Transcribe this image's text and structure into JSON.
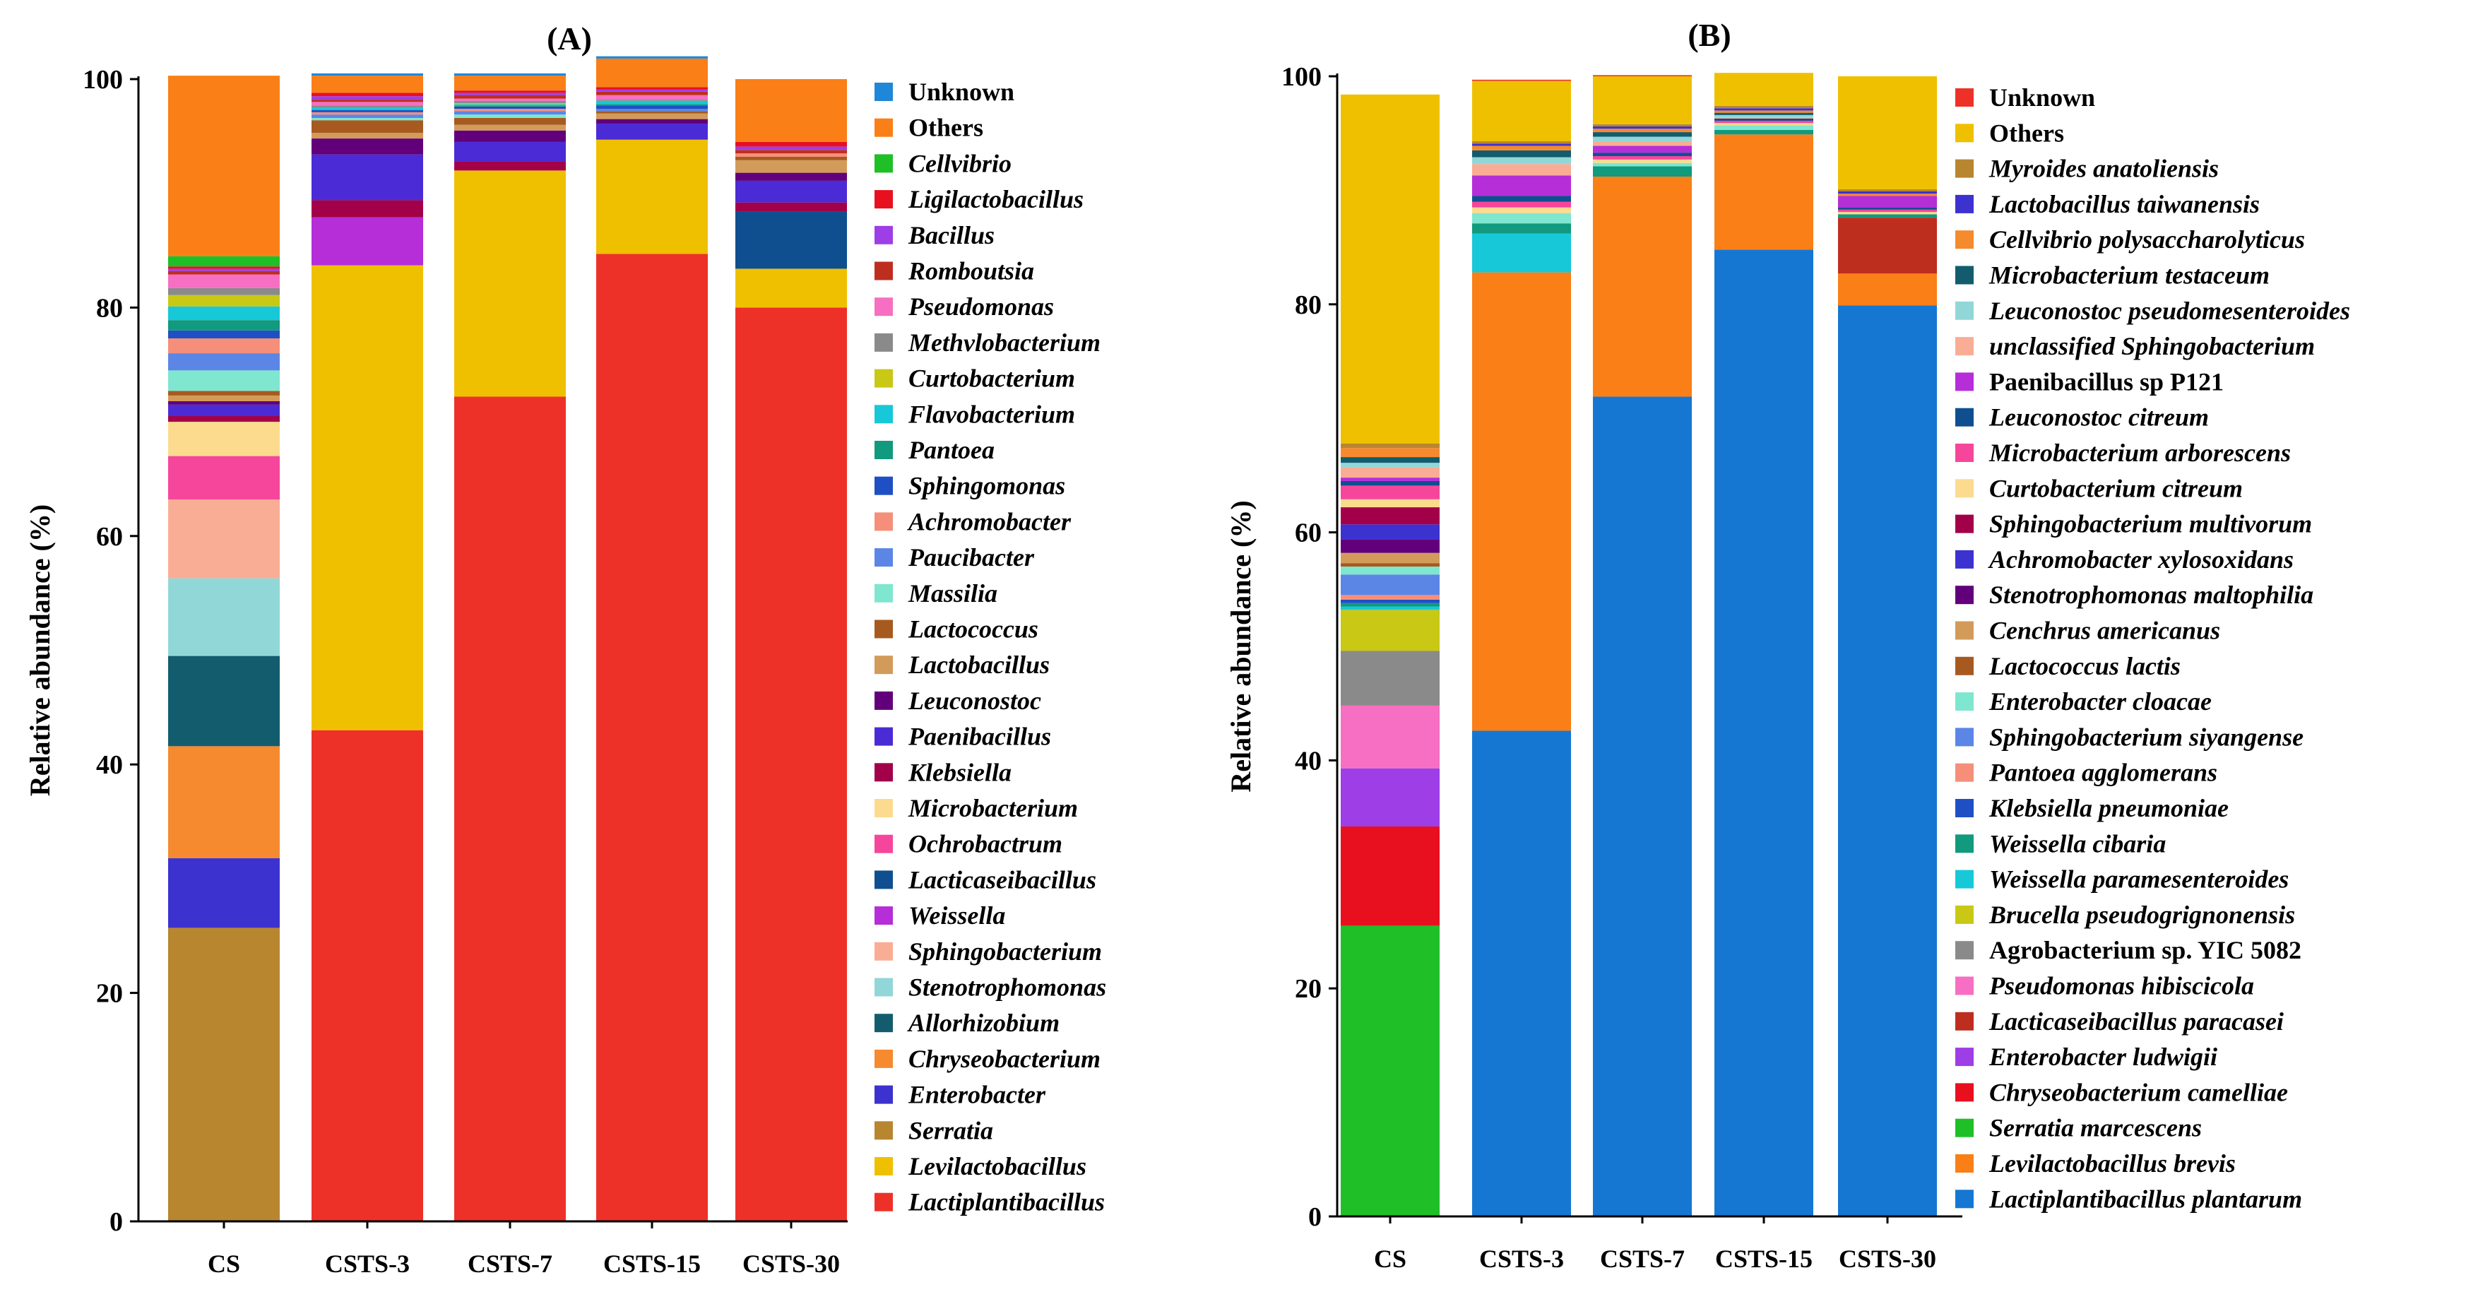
{
  "chart_data": [
    {
      "type": "bar",
      "stacked": true,
      "title": "(A)",
      "xlabel": "",
      "ylabel": "Relative abundance (%)",
      "ylim": [
        0,
        100
      ],
      "yticks": [
        0,
        20,
        40,
        60,
        80,
        100
      ],
      "categories": [
        "CS",
        "CSTS-3",
        "CSTS-7",
        "CSTS-15",
        "CSTS-30"
      ],
      "legend_position": "right",
      "series": [
        {
          "name": "Lactiplantibacillus",
          "italic": true,
          "color": "#ee3128",
          "values": [
            0,
            43.0,
            72.2,
            84.7,
            80.0
          ]
        },
        {
          "name": "Levilactobacillus",
          "italic": true,
          "color": "#efc000",
          "values": [
            0,
            40.7,
            19.8,
            10.0,
            3.4
          ]
        },
        {
          "name": "Serratia",
          "italic": true,
          "color": "#b8862f",
          "values": [
            25.7,
            0,
            0,
            0,
            0
          ]
        },
        {
          "name": "Enterobacter",
          "italic": true,
          "color": "#3c32d0",
          "values": [
            6.1,
            0,
            0,
            0,
            0
          ]
        },
        {
          "name": "Chryseobacterium",
          "italic": true,
          "color": "#f58a2e",
          "values": [
            9.8,
            0,
            0,
            0,
            0
          ]
        },
        {
          "name": "Allorhizobium",
          "italic": true,
          "color": "#135c6e",
          "values": [
            7.9,
            0,
            0,
            0,
            0
          ]
        },
        {
          "name": "Stenotrophomonas",
          "italic": true,
          "color": "#92d7d7",
          "values": [
            6.8,
            0,
            0,
            0,
            0
          ]
        },
        {
          "name": "Sphingobacterium",
          "italic": true,
          "color": "#f9ad95",
          "values": [
            6.9,
            0,
            0,
            0,
            0
          ]
        },
        {
          "name": "Weissella",
          "italic": true,
          "color": "#b52ed8",
          "values": [
            0,
            4.2,
            0,
            0,
            0
          ]
        },
        {
          "name": "Lacticaseibacillus",
          "italic": true,
          "color": "#0f4f8f",
          "values": [
            0,
            0,
            0,
            0,
            5.0
          ]
        },
        {
          "name": "Ochrobactrum",
          "italic": true,
          "color": "#f6469b",
          "values": [
            3.8,
            0,
            0,
            0,
            0
          ]
        },
        {
          "name": "Microbacterium",
          "italic": true,
          "color": "#fcdb8f",
          "values": [
            3.0,
            0,
            0,
            0,
            0
          ]
        },
        {
          "name": "Klebsiella",
          "italic": true,
          "color": "#a3004a",
          "values": [
            0.5,
            1.5,
            0.8,
            0,
            0.8
          ]
        },
        {
          "name": "Paenibacillus",
          "italic": true,
          "color": "#4b2bd5",
          "values": [
            1.0,
            4.0,
            1.7,
            1.4,
            1.9
          ]
        },
        {
          "name": "Leuconostoc",
          "italic": true,
          "color": "#62007b",
          "values": [
            0.3,
            1.4,
            1.0,
            0.4,
            0.7
          ]
        },
        {
          "name": "Lactobacillus",
          "italic": true,
          "color": "#d39b5a",
          "values": [
            0.5,
            0.5,
            0.5,
            0.5,
            1.1
          ]
        },
        {
          "name": "Lactococcus",
          "italic": true,
          "color": "#a75a1f",
          "values": [
            0.4,
            1.1,
            0.6,
            0.2,
            0.3
          ]
        },
        {
          "name": "Massilia",
          "italic": true,
          "color": "#7fe6d0",
          "values": [
            1.8,
            0.2,
            0.3,
            0,
            0
          ]
        },
        {
          "name": "Paucibacter",
          "italic": true,
          "color": "#5b86e6",
          "values": [
            1.5,
            0.3,
            0.3,
            0.2,
            0
          ]
        },
        {
          "name": "Achromobacter",
          "italic": true,
          "color": "#f58f7a",
          "values": [
            1.3,
            0.2,
            0.2,
            0,
            0.3
          ]
        },
        {
          "name": "Sphingomonas",
          "italic": true,
          "color": "#1f4fc5",
          "values": [
            0.7,
            0.2,
            0.2,
            0.3,
            0
          ]
        },
        {
          "name": "Pantoea",
          "italic": true,
          "color": "#119a7d",
          "values": [
            0.9,
            0,
            0.1,
            0.1,
            0
          ]
        },
        {
          "name": "Flavobacterium",
          "italic": true,
          "color": "#17c8d8",
          "values": [
            1.2,
            0.2,
            0.1,
            0.3,
            0
          ]
        },
        {
          "name": "Curtobacterium",
          "italic": true,
          "color": "#c8c815",
          "values": [
            1.0,
            0,
            0.1,
            0,
            0
          ]
        },
        {
          "name": "Methvlobacterium",
          "italic": true,
          "color": "#8a8a8a",
          "values": [
            0.6,
            0.2,
            0.2,
            0.1,
            0
          ]
        },
        {
          "name": "Pseudomonas",
          "italic": true,
          "color": "#f66fc2",
          "values": [
            1.2,
            0.3,
            0.2,
            0.4,
            0
          ]
        },
        {
          "name": "Romboutsia",
          "italic": true,
          "color": "#be2e1f",
          "values": [
            0.3,
            0.2,
            0.3,
            0.3,
            0.3
          ]
        },
        {
          "name": "Bacillus",
          "italic": true,
          "color": "#9d3ee7",
          "values": [
            0.2,
            0.3,
            0.2,
            0.2,
            0.3
          ]
        },
        {
          "name": "Ligilactobacillus",
          "italic": true,
          "color": "#e8101f",
          "values": [
            0.2,
            0.3,
            0.2,
            0.2,
            0.4
          ]
        },
        {
          "name": "Cellvibrio",
          "italic": true,
          "color": "#1fbf28",
          "values": [
            0.9,
            0,
            0,
            0,
            0
          ]
        },
        {
          "name": "Others",
          "italic": false,
          "color": "#fa7f17",
          "values": [
            15.8,
            1.5,
            1.3,
            2.5,
            5.5
          ]
        },
        {
          "name": "Unknown",
          "italic": false,
          "color": "#1e87d8",
          "values": [
            0,
            0.2,
            0.2,
            0.2,
            0
          ]
        }
      ]
    },
    {
      "type": "bar",
      "stacked": true,
      "title": "(B)",
      "xlabel": "",
      "ylabel": "Relative abundance (%)",
      "ylim": [
        0,
        100
      ],
      "yticks": [
        0,
        20,
        40,
        60,
        80,
        100
      ],
      "categories": [
        "CS",
        "CSTS-3",
        "CSTS-7",
        "CSTS-15",
        "CSTS-30"
      ],
      "legend_position": "right",
      "series": [
        {
          "name": "Lactiplantibacillus plantarum",
          "italic": true,
          "color": "#1677d2",
          "values": [
            0,
            42.6,
            71.9,
            84.8,
            79.9
          ]
        },
        {
          "name": "Levilactobacillus brevis",
          "italic": true,
          "color": "#fa7f17",
          "values": [
            0,
            40.2,
            19.3,
            10.1,
            2.8
          ]
        },
        {
          "name": "Serratia marcescens",
          "italic": true,
          "color": "#1fbf28",
          "values": [
            25.5,
            0,
            0,
            0,
            0
          ]
        },
        {
          "name": "Chryseobacterium camelliae",
          "italic": true,
          "color": "#e8101f",
          "values": [
            8.7,
            0,
            0,
            0,
            0
          ]
        },
        {
          "name": "Enterobacter ludwigii",
          "italic": true,
          "color": "#9d3ee7",
          "values": [
            5.1,
            0,
            0,
            0,
            0
          ]
        },
        {
          "name": "Lacticaseibacillus paracasei",
          "italic": true,
          "color": "#be2e1f",
          "values": [
            0,
            0,
            0,
            0,
            4.9
          ]
        },
        {
          "name": "Pseudomonas hibiscicola",
          "italic": true,
          "color": "#f66fc2",
          "values": [
            5.5,
            0,
            0,
            0,
            0
          ]
        },
        {
          "name": "Agrobacterium sp. YIC 5082",
          "italic": false,
          "color": "#8a8a8a",
          "values": [
            4.8,
            0,
            0,
            0,
            0
          ]
        },
        {
          "name": "Brucella pseudogrignonensis",
          "italic": true,
          "color": "#c8c815",
          "values": [
            3.6,
            0,
            0,
            0,
            0
          ]
        },
        {
          "name": "Weissella paramesenteroides",
          "italic": true,
          "color": "#17c8d8",
          "values": [
            0.3,
            3.4,
            0,
            0,
            0
          ]
        },
        {
          "name": "Weissella cibaria",
          "italic": true,
          "color": "#119a7d",
          "values": [
            0.3,
            0.9,
            0.9,
            0.4,
            0.3
          ]
        },
        {
          "name": "Klebsiella pneumoniae",
          "italic": true,
          "color": "#1f4fc5",
          "values": [
            0.3,
            0,
            0,
            0,
            0
          ]
        },
        {
          "name": "Pantoea agglomerans",
          "italic": true,
          "color": "#f58f7a",
          "values": [
            0.4,
            0,
            0,
            0,
            0
          ]
        },
        {
          "name": "Sphingobacterium siyangense",
          "italic": true,
          "color": "#5b86e6",
          "values": [
            1.8,
            0,
            0,
            0,
            0
          ]
        },
        {
          "name": "Enterobacter cloacae",
          "italic": true,
          "color": "#7fe6d0",
          "values": [
            0.7,
            0.9,
            0.3,
            0.4,
            0
          ]
        },
        {
          "name": "Lactococcus lactis",
          "italic": true,
          "color": "#a75a1f",
          "values": [
            0.3,
            0,
            0,
            0,
            0
          ]
        },
        {
          "name": "Cenchrus americanus",
          "italic": true,
          "color": "#d39b5a",
          "values": [
            0.9,
            0,
            0,
            0,
            0
          ]
        },
        {
          "name": "Stenotrophomonas maltophilia",
          "italic": true,
          "color": "#62007b",
          "values": [
            1.2,
            0,
            0,
            0,
            0
          ]
        },
        {
          "name": "Achromobacter xylosoxidans",
          "italic": true,
          "color": "#3c32d0",
          "values": [
            1.3,
            0,
            0,
            0,
            0
          ]
        },
        {
          "name": "Sphingobacterium multivorum",
          "italic": true,
          "color": "#a3004a",
          "values": [
            1.5,
            0,
            0,
            0,
            0
          ]
        },
        {
          "name": "Curtobacterium citreum",
          "italic": true,
          "color": "#fcdb8f",
          "values": [
            0.7,
            0.5,
            0.3,
            0.2,
            0.2
          ]
        },
        {
          "name": "Microbacterium arborescens",
          "italic": true,
          "color": "#f6469b",
          "values": [
            1.2,
            0.5,
            0.3,
            0.2,
            0.2
          ]
        },
        {
          "name": "Leuconostoc citreum",
          "italic": true,
          "color": "#0f4f8f",
          "values": [
            0.4,
            0.5,
            0.3,
            0.2,
            0.2
          ]
        },
        {
          "name": "Paenibacillus sp P121",
          "italic": false,
          "color": "#b52ed8",
          "values": [
            0.3,
            1.8,
            0.6,
            0,
            1.0
          ]
        },
        {
          "name": "unclassified Sphingobacterium",
          "italic": true,
          "color": "#f9ad95",
          "values": [
            0.9,
            1.0,
            0.4,
            0.1,
            0
          ]
        },
        {
          "name": "Leuconostoc pseudomesenteroides",
          "italic": true,
          "color": "#92d7d7",
          "values": [
            0.4,
            0.6,
            0.4,
            0.2,
            0
          ]
        },
        {
          "name": "Microbacterium testaceum",
          "italic": true,
          "color": "#135c6e",
          "values": [
            0.5,
            0.6,
            0.4,
            0.2,
            0
          ]
        },
        {
          "name": "Cellvibrio polysaccharolyticus",
          "italic": true,
          "color": "#f58a2e",
          "values": [
            0.8,
            0.4,
            0.3,
            0.2,
            0.2
          ]
        },
        {
          "name": "Lactobacillus taiwanensis",
          "italic": true,
          "color": "#3c32d0",
          "values": [
            0,
            0.2,
            0.2,
            0.2,
            0.2
          ]
        },
        {
          "name": "Myroides anatoliensis",
          "italic": true,
          "color": "#b8862f",
          "values": [
            0.4,
            0.2,
            0.2,
            0.2,
            0.2
          ]
        },
        {
          "name": "Others",
          "italic": false,
          "color": "#efc000",
          "values": [
            30.6,
            5.3,
            4.2,
            2.9,
            9.9
          ]
        },
        {
          "name": "Unknown",
          "italic": false,
          "color": "#ee3128",
          "values": [
            0,
            0.1,
            0.1,
            0,
            0
          ]
        }
      ]
    }
  ]
}
